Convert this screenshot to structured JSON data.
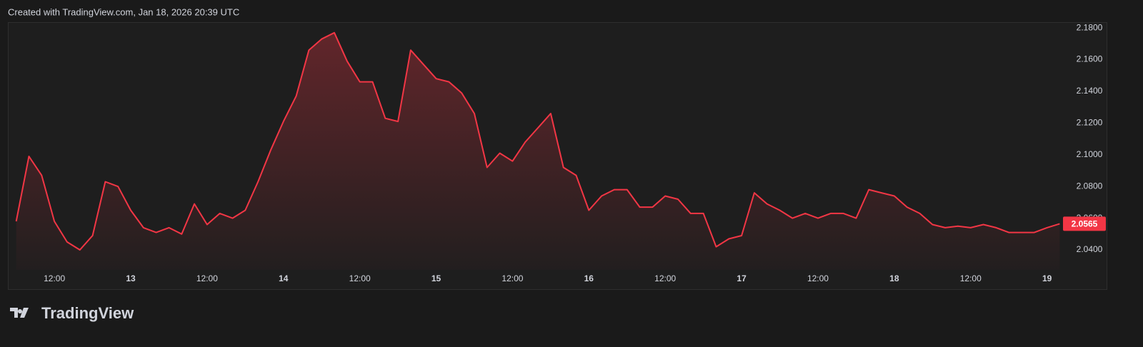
{
  "chart_data": {
    "type": "area",
    "title": "Created with TradingView.com, Jan 18, 2026 20:39 UTC",
    "brand": "TradingView",
    "color": "#f23645",
    "grid": false,
    "values": [
      2.058,
      2.099,
      2.087,
      2.058,
      2.045,
      2.04,
      2.049,
      2.083,
      2.08,
      2.065,
      2.054,
      2.051,
      2.054,
      2.05,
      2.069,
      2.056,
      2.063,
      2.06,
      2.065,
      2.083,
      2.103,
      2.121,
      2.137,
      2.166,
      2.173,
      2.177,
      2.159,
      2.146,
      2.146,
      2.123,
      2.121,
      2.166,
      2.157,
      2.148,
      2.146,
      2.139,
      2.126,
      2.092,
      2.101,
      2.096,
      2.108,
      2.117,
      2.126,
      2.092,
      2.087,
      2.065,
      2.074,
      2.078,
      2.078,
      2.067,
      2.067,
      2.074,
      2.072,
      2.063,
      2.063,
      2.042,
      2.047,
      2.049,
      2.076,
      2.069,
      2.065,
      2.06,
      2.063,
      2.06,
      2.063,
      2.063,
      2.06,
      2.078,
      2.076,
      2.074,
      2.067,
      2.063,
      2.056,
      2.054,
      2.055,
      2.054,
      2.056,
      2.054,
      2.051,
      2.051,
      2.051,
      2.054,
      2.0565
    ],
    "xlim": [
      -0.6,
      82.2
    ],
    "xticks": [
      {
        "value": 3,
        "label": "12:00"
      },
      {
        "value": 9,
        "label": "13"
      },
      {
        "value": 15,
        "label": "12:00"
      },
      {
        "value": 21,
        "label": "14"
      },
      {
        "value": 27,
        "label": "12:00"
      },
      {
        "value": 33,
        "label": "15"
      },
      {
        "value": 39,
        "label": "12:00"
      },
      {
        "value": 45,
        "label": "16"
      },
      {
        "value": 51,
        "label": "12:00"
      },
      {
        "value": 57,
        "label": "17"
      },
      {
        "value": 63,
        "label": "12:00"
      },
      {
        "value": 69,
        "label": "18"
      },
      {
        "value": 75,
        "label": "12:00"
      },
      {
        "value": 81,
        "label": "19"
      }
    ],
    "ylim": [
      2.0274,
      2.1832
    ],
    "yticks": [
      {
        "value": 2.04,
        "label": "2.0400"
      },
      {
        "value": 2.06,
        "label": "2.0600"
      },
      {
        "value": 2.08,
        "label": "2.0800"
      },
      {
        "value": 2.1,
        "label": "2.1000"
      },
      {
        "value": 2.12,
        "label": "2.1200"
      },
      {
        "value": 2.14,
        "label": "2.1400"
      },
      {
        "value": 2.16,
        "label": "2.1600"
      },
      {
        "value": 2.18,
        "label": "2.1800"
      }
    ]
  }
}
